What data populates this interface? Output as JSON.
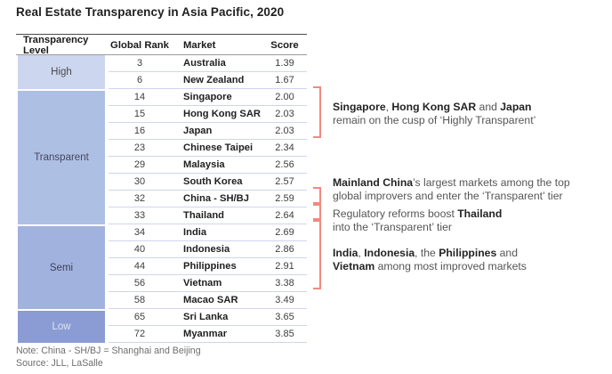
{
  "chart_data": {
    "type": "table",
    "title": "Real Estate Transparency in Asia Pacific, 2020",
    "columns": [
      "Transparency Level",
      "Global Rank",
      "Market",
      "Score"
    ],
    "groups": [
      {
        "level": "High",
        "cell_color": "#ccd6ee",
        "label_color": "#4a4a4a",
        "rows": [
          {
            "rank": "3",
            "market": "Australia",
            "score": "1.39"
          },
          {
            "rank": "6",
            "market": "New Zealand",
            "score": "1.67"
          }
        ]
      },
      {
        "level": "Transparent",
        "cell_color": "#aebfe4",
        "label_color": "#44465e",
        "rows": [
          {
            "rank": "14",
            "market": "Singapore",
            "score": "2.00"
          },
          {
            "rank": "15",
            "market": "Hong Kong SAR",
            "score": "2.03"
          },
          {
            "rank": "16",
            "market": "Japan",
            "score": "2.03"
          },
          {
            "rank": "23",
            "market": "Chinese Taipei",
            "score": "2.34"
          },
          {
            "rank": "29",
            "market": "Malaysia",
            "score": "2.56"
          },
          {
            "rank": "30",
            "market": "South Korea",
            "score": "2.57"
          },
          {
            "rank": "32",
            "market": "China - SH/BJ",
            "score": "2.59"
          },
          {
            "rank": "33",
            "market": "Thailand",
            "score": "2.64"
          }
        ]
      },
      {
        "level": "Semi",
        "cell_color": "#a2b2de",
        "label_color": "#3f415a",
        "rows": [
          {
            "rank": "34",
            "market": "India",
            "score": "2.69"
          },
          {
            "rank": "40",
            "market": "Indonesia",
            "score": "2.86"
          },
          {
            "rank": "44",
            "market": "Philippines",
            "score": "2.91"
          },
          {
            "rank": "56",
            "market": "Vietnam",
            "score": "3.38"
          },
          {
            "rank": "58",
            "market": "Macao SAR",
            "score": "3.49"
          }
        ]
      },
      {
        "level": "Low",
        "cell_color": "#8b9cd4",
        "label_color": "#dfe3f2",
        "rows": [
          {
            "rank": "65",
            "market": "Sri Lanka",
            "score": "3.65"
          },
          {
            "rank": "72",
            "market": "Myanmar",
            "score": "3.85"
          }
        ]
      }
    ],
    "bracket_color": "#ee8a82",
    "annotations": [
      {
        "text": "Singapore, Hong Kong SAR and Japan remain on the cusp of ‘Highly Transparent’",
        "segments": [
          {
            "text": "Singapore",
            "bold": true
          },
          {
            "text": ", ",
            "bold": false
          },
          {
            "text": "Hong Kong SAR",
            "bold": true
          },
          {
            "text": " and ",
            "bold": false
          },
          {
            "text": "Japan",
            "bold": true
          },
          {
            "br": true
          },
          {
            "text": "remain on the cusp of ‘Highly Transparent’",
            "bold": false
          }
        ]
      },
      {
        "text": "Mainland China’s largest markets among the top global improvers and enter the ‘Transparent’ tier",
        "segments": [
          {
            "text": "Mainland China",
            "bold": true
          },
          {
            "text": "’s largest markets among the top",
            "bold": false
          },
          {
            "br": true
          },
          {
            "text": "global improvers and enter the ‘Transparent’ tier",
            "bold": false
          }
        ]
      },
      {
        "text": "Regulatory reforms boost Thailand into the ‘Transparent’ tier",
        "segments": [
          {
            "text": "Regulatory reforms boost ",
            "bold": false
          },
          {
            "text": "Thailand",
            "bold": true
          },
          {
            "br": true
          },
          {
            "text": "into the ‘Transparent’ tier",
            "bold": false
          }
        ]
      },
      {
        "text": "India, Indonesia, the Philippines and Vietnam among most improved markets",
        "segments": [
          {
            "text": "India",
            "bold": true
          },
          {
            "text": ", ",
            "bold": false
          },
          {
            "text": "Indonesia",
            "bold": true
          },
          {
            "text": ", the ",
            "bold": false
          },
          {
            "text": "Philippines",
            "bold": true
          },
          {
            "text": " and",
            "bold": false
          },
          {
            "br": true
          },
          {
            "text": "Vietnam",
            "bold": true
          },
          {
            "text": " among most improved markets",
            "bold": false
          }
        ]
      }
    ],
    "notes": [
      "Note: China - SH/BJ = Shanghai and Beijing",
      "Source: JLL, LaSalle"
    ]
  }
}
